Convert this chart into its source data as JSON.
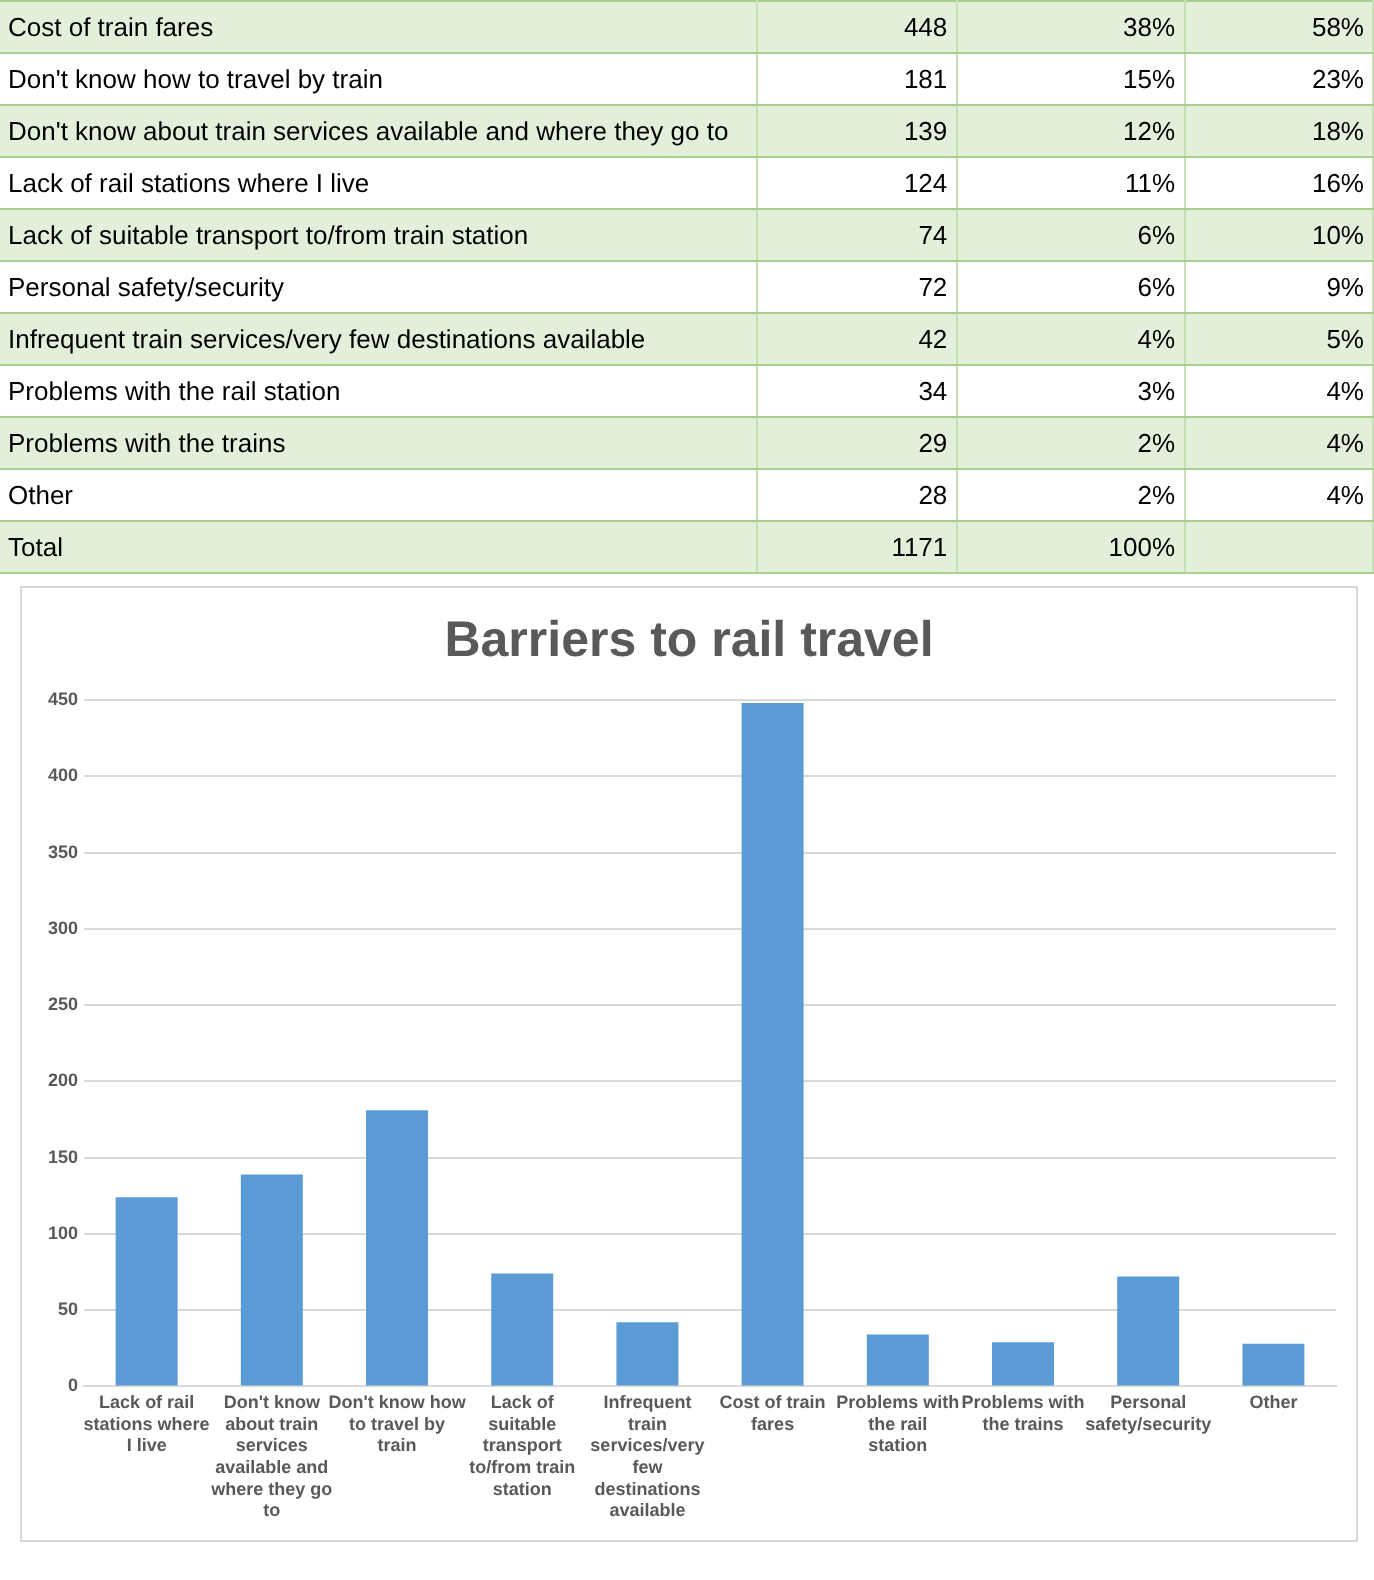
{
  "chart_data": [
    {
      "type": "other",
      "data_labels": true,
      "categories": [
        "Cost of train fares",
        "Don't know how to travel by train",
        "Don't know about train services available and where they go to",
        "Lack of rail stations where I live",
        "Lack of suitable transport to/from train station",
        "Personal safety/security",
        "Infrequent train services/very few destinations available",
        "Problems with the rail station",
        "Problems with the trains",
        "Other",
        "Total"
      ],
      "series": [
        {
          "values": [
            448,
            181,
            139,
            124,
            74,
            72,
            42,
            34,
            29,
            28,
            1171
          ]
        },
        {
          "values": [
            38,
            15,
            12,
            11,
            6,
            6,
            4,
            3,
            2,
            2,
            100
          ],
          "value_labels": [
            "38%",
            "15%",
            "12%",
            "11%",
            "6%",
            "6%",
            "4%",
            "3%",
            "2%",
            "2%",
            "100%"
          ]
        },
        {
          "values": [
            58,
            23,
            18,
            16,
            10,
            9,
            5,
            4,
            4,
            4,
            null
          ],
          "value_labels": [
            "58%",
            "23%",
            "18%",
            "16%",
            "10%",
            "9%",
            "5%",
            "4%",
            "4%",
            "4%",
            null
          ]
        }
      ]
    },
    {
      "type": "bar",
      "title": "Barriers to rail travel",
      "categories": [
        "Lack of rail stations where I live",
        "Don't know about train services available and where they go to",
        "Don't know how to travel by train",
        "Lack of suitable transport to/from train station",
        "Infrequent train services/very few destinations available",
        "Cost of train fares",
        "Problems with the rail station",
        "Problems with the trains",
        "Personal safety/security",
        "Other"
      ],
      "values": [
        124,
        139,
        181,
        74,
        42,
        448,
        34,
        29,
        72,
        28
      ],
      "color": "#5b9bd5",
      "ylim": [
        0,
        450
      ],
      "yticks": [
        0,
        50,
        100,
        150,
        200,
        250,
        300,
        350,
        400,
        450
      ],
      "grid": "y"
    }
  ]
}
